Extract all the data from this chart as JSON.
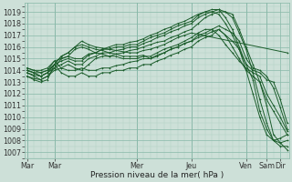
{
  "background_color": "#cde0d8",
  "grid_color_minor": "#b0d0c4",
  "grid_color_major": "#88b8a8",
  "line_color": "#1a5c2a",
  "ylabel": "Pression niveau de la mer( hPa )",
  "ylim": [
    1006.5,
    1019.8
  ],
  "yticks": [
    1007,
    1008,
    1009,
    1010,
    1011,
    1012,
    1013,
    1014,
    1015,
    1016,
    1017,
    1018,
    1019
  ],
  "xlim": [
    -2,
    230
  ],
  "label_fontsize": 6.5,
  "tick_fontsize": 5.8,
  "x_day_ticks": [
    0,
    48,
    96,
    144,
    192,
    216,
    228
  ],
  "x_day_labels": [
    "Mar",
    "Mar",
    "Mer",
    "Jeu",
    "Ven",
    "Sam",
    "Dir"
  ],
  "series": [
    {
      "x": [
        0,
        6,
        12,
        18,
        24,
        30,
        36,
        42,
        48,
        54,
        60,
        66,
        72,
        78,
        84,
        90,
        96,
        102,
        108,
        114,
        120,
        126,
        132,
        138,
        144,
        150,
        156,
        162,
        168,
        174,
        180,
        186,
        192,
        198,
        204,
        210,
        216,
        222,
        228
      ],
      "y": [
        1013.5,
        1013.3,
        1013.2,
        1013.5,
        1014.0,
        1014.2,
        1014.5,
        1014.2,
        1014.0,
        1014.5,
        1015.0,
        1015.2,
        1015.2,
        1015.4,
        1015.5,
        1015.7,
        1015.8,
        1016.0,
        1016.2,
        1016.4,
        1016.5,
        1016.8,
        1017.0,
        1017.3,
        1017.5,
        1018.0,
        1018.5,
        1018.8,
        1019.0,
        1019.0,
        1018.8,
        1017.5,
        1016.0,
        1014.5,
        1013.0,
        1011.0,
        1008.5,
        1007.8,
        1007.2
      ]
    },
    {
      "x": [
        0,
        6,
        12,
        18,
        24,
        30,
        36,
        42,
        48,
        54,
        60,
        66,
        72,
        78,
        84,
        90,
        96,
        102,
        108,
        114,
        120,
        126,
        132,
        138,
        144,
        150,
        156,
        162,
        168,
        174,
        180,
        186,
        192,
        198,
        204,
        210,
        216,
        222,
        228
      ],
      "y": [
        1013.8,
        1013.6,
        1013.5,
        1013.8,
        1014.2,
        1014.5,
        1014.8,
        1014.5,
        1014.5,
        1015.0,
        1015.2,
        1015.5,
        1015.5,
        1015.7,
        1015.8,
        1016.0,
        1016.0,
        1016.3,
        1016.5,
        1016.8,
        1017.0,
        1017.3,
        1017.5,
        1017.8,
        1018.0,
        1018.5,
        1018.8,
        1019.0,
        1019.2,
        1019.0,
        1018.5,
        1017.2,
        1015.8,
        1013.8,
        1011.5,
        1009.5,
        1008.0,
        1007.5,
        1007.5
      ]
    },
    {
      "x": [
        0,
        6,
        12,
        18,
        24,
        30,
        36,
        42,
        48,
        54,
        60,
        66,
        72,
        78,
        84,
        90,
        96,
        102,
        108,
        114,
        120,
        126,
        132,
        138,
        144,
        150,
        156,
        162,
        168,
        174,
        180,
        186,
        192,
        198,
        204,
        210,
        216,
        222,
        228
      ],
      "y": [
        1014.0,
        1013.8,
        1013.8,
        1014.0,
        1014.5,
        1014.8,
        1015.0,
        1014.8,
        1014.8,
        1015.3,
        1015.5,
        1015.8,
        1015.8,
        1016.0,
        1016.0,
        1016.2,
        1016.2,
        1016.5,
        1016.8,
        1017.0,
        1017.2,
        1017.5,
        1017.8,
        1018.0,
        1018.2,
        1018.7,
        1019.0,
        1019.2,
        1019.2,
        1018.5,
        1017.5,
        1016.0,
        1014.5,
        1013.2,
        1010.5,
        1009.0,
        1008.0,
        1007.8,
        1008.0
      ]
    },
    {
      "x": [
        0,
        6,
        12,
        18,
        24,
        30,
        36,
        42,
        48,
        54,
        60,
        66,
        72,
        78,
        84,
        90,
        96,
        102,
        108,
        114,
        120,
        126,
        132,
        138,
        144,
        150,
        156,
        162,
        168,
        174,
        180,
        186,
        192,
        198,
        204,
        210,
        216,
        222,
        228
      ],
      "y": [
        1014.2,
        1014.0,
        1014.0,
        1014.2,
        1014.8,
        1015.0,
        1015.2,
        1015.0,
        1015.0,
        1015.4,
        1015.5,
        1015.8,
        1016.0,
        1016.2,
        1016.2,
        1016.4,
        1016.5,
        1016.7,
        1017.0,
        1017.2,
        1017.5,
        1017.7,
        1018.0,
        1018.2,
        1018.5,
        1018.8,
        1019.0,
        1019.0,
        1018.8,
        1018.0,
        1017.0,
        1015.8,
        1014.0,
        1012.0,
        1010.0,
        1008.5,
        1008.0,
        1008.2,
        1008.5
      ]
    },
    {
      "x": [
        0,
        6,
        12,
        18,
        24,
        30,
        36,
        42,
        48,
        54,
        60,
        66,
        72,
        78,
        84,
        90,
        96,
        102,
        108,
        114,
        120,
        126,
        132,
        138,
        144,
        150,
        156,
        162,
        168,
        174,
        180,
        186,
        192,
        198,
        204,
        210,
        216,
        222,
        228
      ],
      "y": [
        1014.0,
        1013.8,
        1013.5,
        1013.8,
        1014.5,
        1015.2,
        1015.5,
        1016.0,
        1016.2,
        1016.0,
        1015.8,
        1015.7,
        1015.5,
        1015.4,
        1015.2,
        1015.2,
        1015.2,
        1015.3,
        1015.0,
        1015.2,
        1015.5,
        1015.8,
        1016.0,
        1016.3,
        1016.5,
        1016.8,
        1017.0,
        1017.3,
        1017.5,
        1017.0,
        1016.0,
        1015.0,
        1014.0,
        1013.5,
        1013.0,
        1011.5,
        1010.5,
        1009.5,
        1008.5
      ]
    },
    {
      "x": [
        0,
        6,
        12,
        18,
        24,
        30,
        36,
        42,
        48,
        54,
        60,
        66,
        72,
        78,
        84,
        90,
        96,
        102,
        108,
        114,
        120,
        126,
        132,
        138,
        144,
        150,
        156,
        162,
        168,
        174,
        180,
        186,
        192,
        198,
        204,
        210,
        216,
        222,
        228
      ],
      "y": [
        1013.8,
        1013.5,
        1013.2,
        1013.5,
        1014.2,
        1015.0,
        1015.2,
        1015.8,
        1016.0,
        1015.8,
        1015.5,
        1015.4,
        1015.2,
        1015.2,
        1015.0,
        1015.0,
        1015.0,
        1015.2,
        1015.2,
        1015.5,
        1015.8,
        1016.0,
        1016.2,
        1016.5,
        1016.8,
        1017.2,
        1017.5,
        1017.5,
        1017.0,
        1016.2,
        1015.5,
        1014.8,
        1014.2,
        1013.8,
        1013.5,
        1012.0,
        1011.0,
        1010.0,
        1008.8
      ]
    },
    {
      "x": [
        0,
        6,
        12,
        18,
        24,
        30,
        36,
        42,
        48,
        54,
        60,
        66,
        72,
        78,
        84,
        90,
        96,
        102,
        108,
        114,
        120,
        126,
        132,
        138,
        144,
        228
      ],
      "y": [
        1014.0,
        1013.8,
        1013.5,
        1013.8,
        1014.5,
        1015.2,
        1015.5,
        1016.0,
        1016.5,
        1016.2,
        1016.0,
        1015.9,
        1015.8,
        1015.7,
        1015.6,
        1015.5,
        1015.5,
        1015.7,
        1015.8,
        1016.0,
        1016.2,
        1016.5,
        1016.8,
        1017.0,
        1017.2,
        1015.5
      ]
    },
    {
      "x": [
        0,
        6,
        12,
        18,
        24,
        30,
        36,
        42,
        48,
        54,
        60,
        66,
        72,
        78,
        84,
        90,
        96,
        102,
        108,
        114,
        120,
        126,
        132,
        138,
        144,
        150,
        156,
        162,
        168,
        174,
        180,
        186,
        192,
        198,
        204,
        210,
        216,
        222,
        228
      ],
      "y": [
        1014.2,
        1014.0,
        1013.8,
        1014.0,
        1014.8,
        1014.2,
        1014.0,
        1014.0,
        1014.2,
        1014.0,
        1014.0,
        1014.2,
        1014.2,
        1014.4,
        1014.5,
        1014.7,
        1014.8,
        1015.0,
        1015.0,
        1015.3,
        1015.5,
        1015.8,
        1016.0,
        1016.3,
        1016.5,
        1017.0,
        1017.2,
        1017.5,
        1017.8,
        1017.5,
        1017.2,
        1016.5,
        1015.0,
        1014.2,
        1014.0,
        1013.5,
        1012.5,
        1010.8,
        1009.0
      ]
    },
    {
      "x": [
        0,
        6,
        12,
        18,
        24,
        30,
        36,
        42,
        48,
        54,
        60,
        66,
        72,
        78,
        84,
        90,
        96,
        102,
        108,
        114,
        120,
        126,
        132,
        138,
        144,
        150,
        156,
        162,
        168,
        174,
        180,
        186,
        192,
        198,
        204,
        210,
        216,
        222,
        228
      ],
      "y": [
        1013.5,
        1013.2,
        1013.0,
        1013.2,
        1014.5,
        1013.8,
        1013.5,
        1013.5,
        1013.8,
        1013.5,
        1013.5,
        1013.8,
        1013.8,
        1014.0,
        1014.0,
        1014.2,
        1014.2,
        1014.5,
        1014.5,
        1014.8,
        1015.0,
        1015.3,
        1015.5,
        1015.8,
        1016.0,
        1016.5,
        1016.8,
        1017.0,
        1017.5,
        1017.0,
        1016.5,
        1015.8,
        1014.5,
        1014.0,
        1013.8,
        1013.2,
        1013.0,
        1011.5,
        1009.5
      ]
    }
  ]
}
